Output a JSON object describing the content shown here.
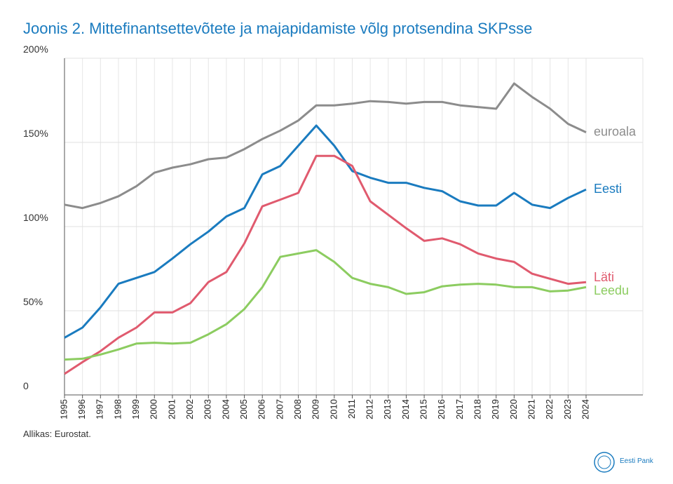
{
  "chart_data": {
    "type": "line",
    "title": "Joonis 2. Mittefinantsettevõtete ja majapidamiste võlg protsendina SKPsse",
    "source": "Allikas: Eurostat.",
    "logo": "Eesti Pank",
    "categories": [
      "1995",
      "1996",
      "1997",
      "1998",
      "1999",
      "2000",
      "2001",
      "2002",
      "2003",
      "2004",
      "2005",
      "2006",
      "2007",
      "2008",
      "2009",
      "2010",
      "2011",
      "2012",
      "2013",
      "2014",
      "2015",
      "2016",
      "2017",
      "2018",
      "2019",
      "2020",
      "2021",
      "2022",
      "2023",
      "2024"
    ],
    "ylim": [
      0,
      200
    ],
    "yticks": [
      0,
      {
        "value": 50,
        "label": "50%"
      },
      {
        "value": 100,
        "label": "100%"
      },
      {
        "value": 150,
        "label": "150%"
      },
      {
        "value": 200,
        "label": "200%"
      }
    ],
    "grid": true,
    "series": [
      {
        "name": "euroala",
        "color": "#8c8c8c",
        "values": [
          113,
          111,
          114,
          118,
          124,
          132,
          135,
          137,
          140,
          141,
          146,
          152,
          157,
          163,
          172,
          172,
          173,
          174.5,
          174,
          173,
          174,
          174,
          172,
          171,
          170,
          185,
          177,
          170,
          161,
          156
        ]
      },
      {
        "name": "Eesti",
        "color": "#1a7bbf",
        "values": [
          34,
          40,
          52,
          66,
          69.5,
          73,
          81,
          89.5,
          97,
          106,
          111,
          131,
          136,
          148,
          160,
          148,
          133,
          129,
          126,
          126,
          123,
          121,
          115,
          112.5,
          112.5,
          120,
          113,
          111,
          117,
          122
        ]
      },
      {
        "name": "Läti",
        "color": "#e05a6e",
        "values": [
          12.5,
          19.5,
          26,
          34,
          40,
          49,
          49,
          54.5,
          67,
          73,
          90,
          112,
          116,
          120,
          142,
          142,
          136,
          115,
          107,
          99,
          91.5,
          93,
          89.5,
          84,
          81,
          79,
          72,
          69,
          66,
          67
        ]
      },
      {
        "name": "Leedu",
        "color": "#8ccc60",
        "values": [
          21,
          21.5,
          24,
          27,
          30.5,
          31,
          30.5,
          31,
          36,
          42,
          51,
          64,
          82,
          84,
          86,
          79,
          69.5,
          66,
          64,
          60,
          61,
          64.5,
          65.5,
          66,
          65.5,
          64,
          64,
          61.5,
          62,
          64
        ]
      }
    ]
  }
}
